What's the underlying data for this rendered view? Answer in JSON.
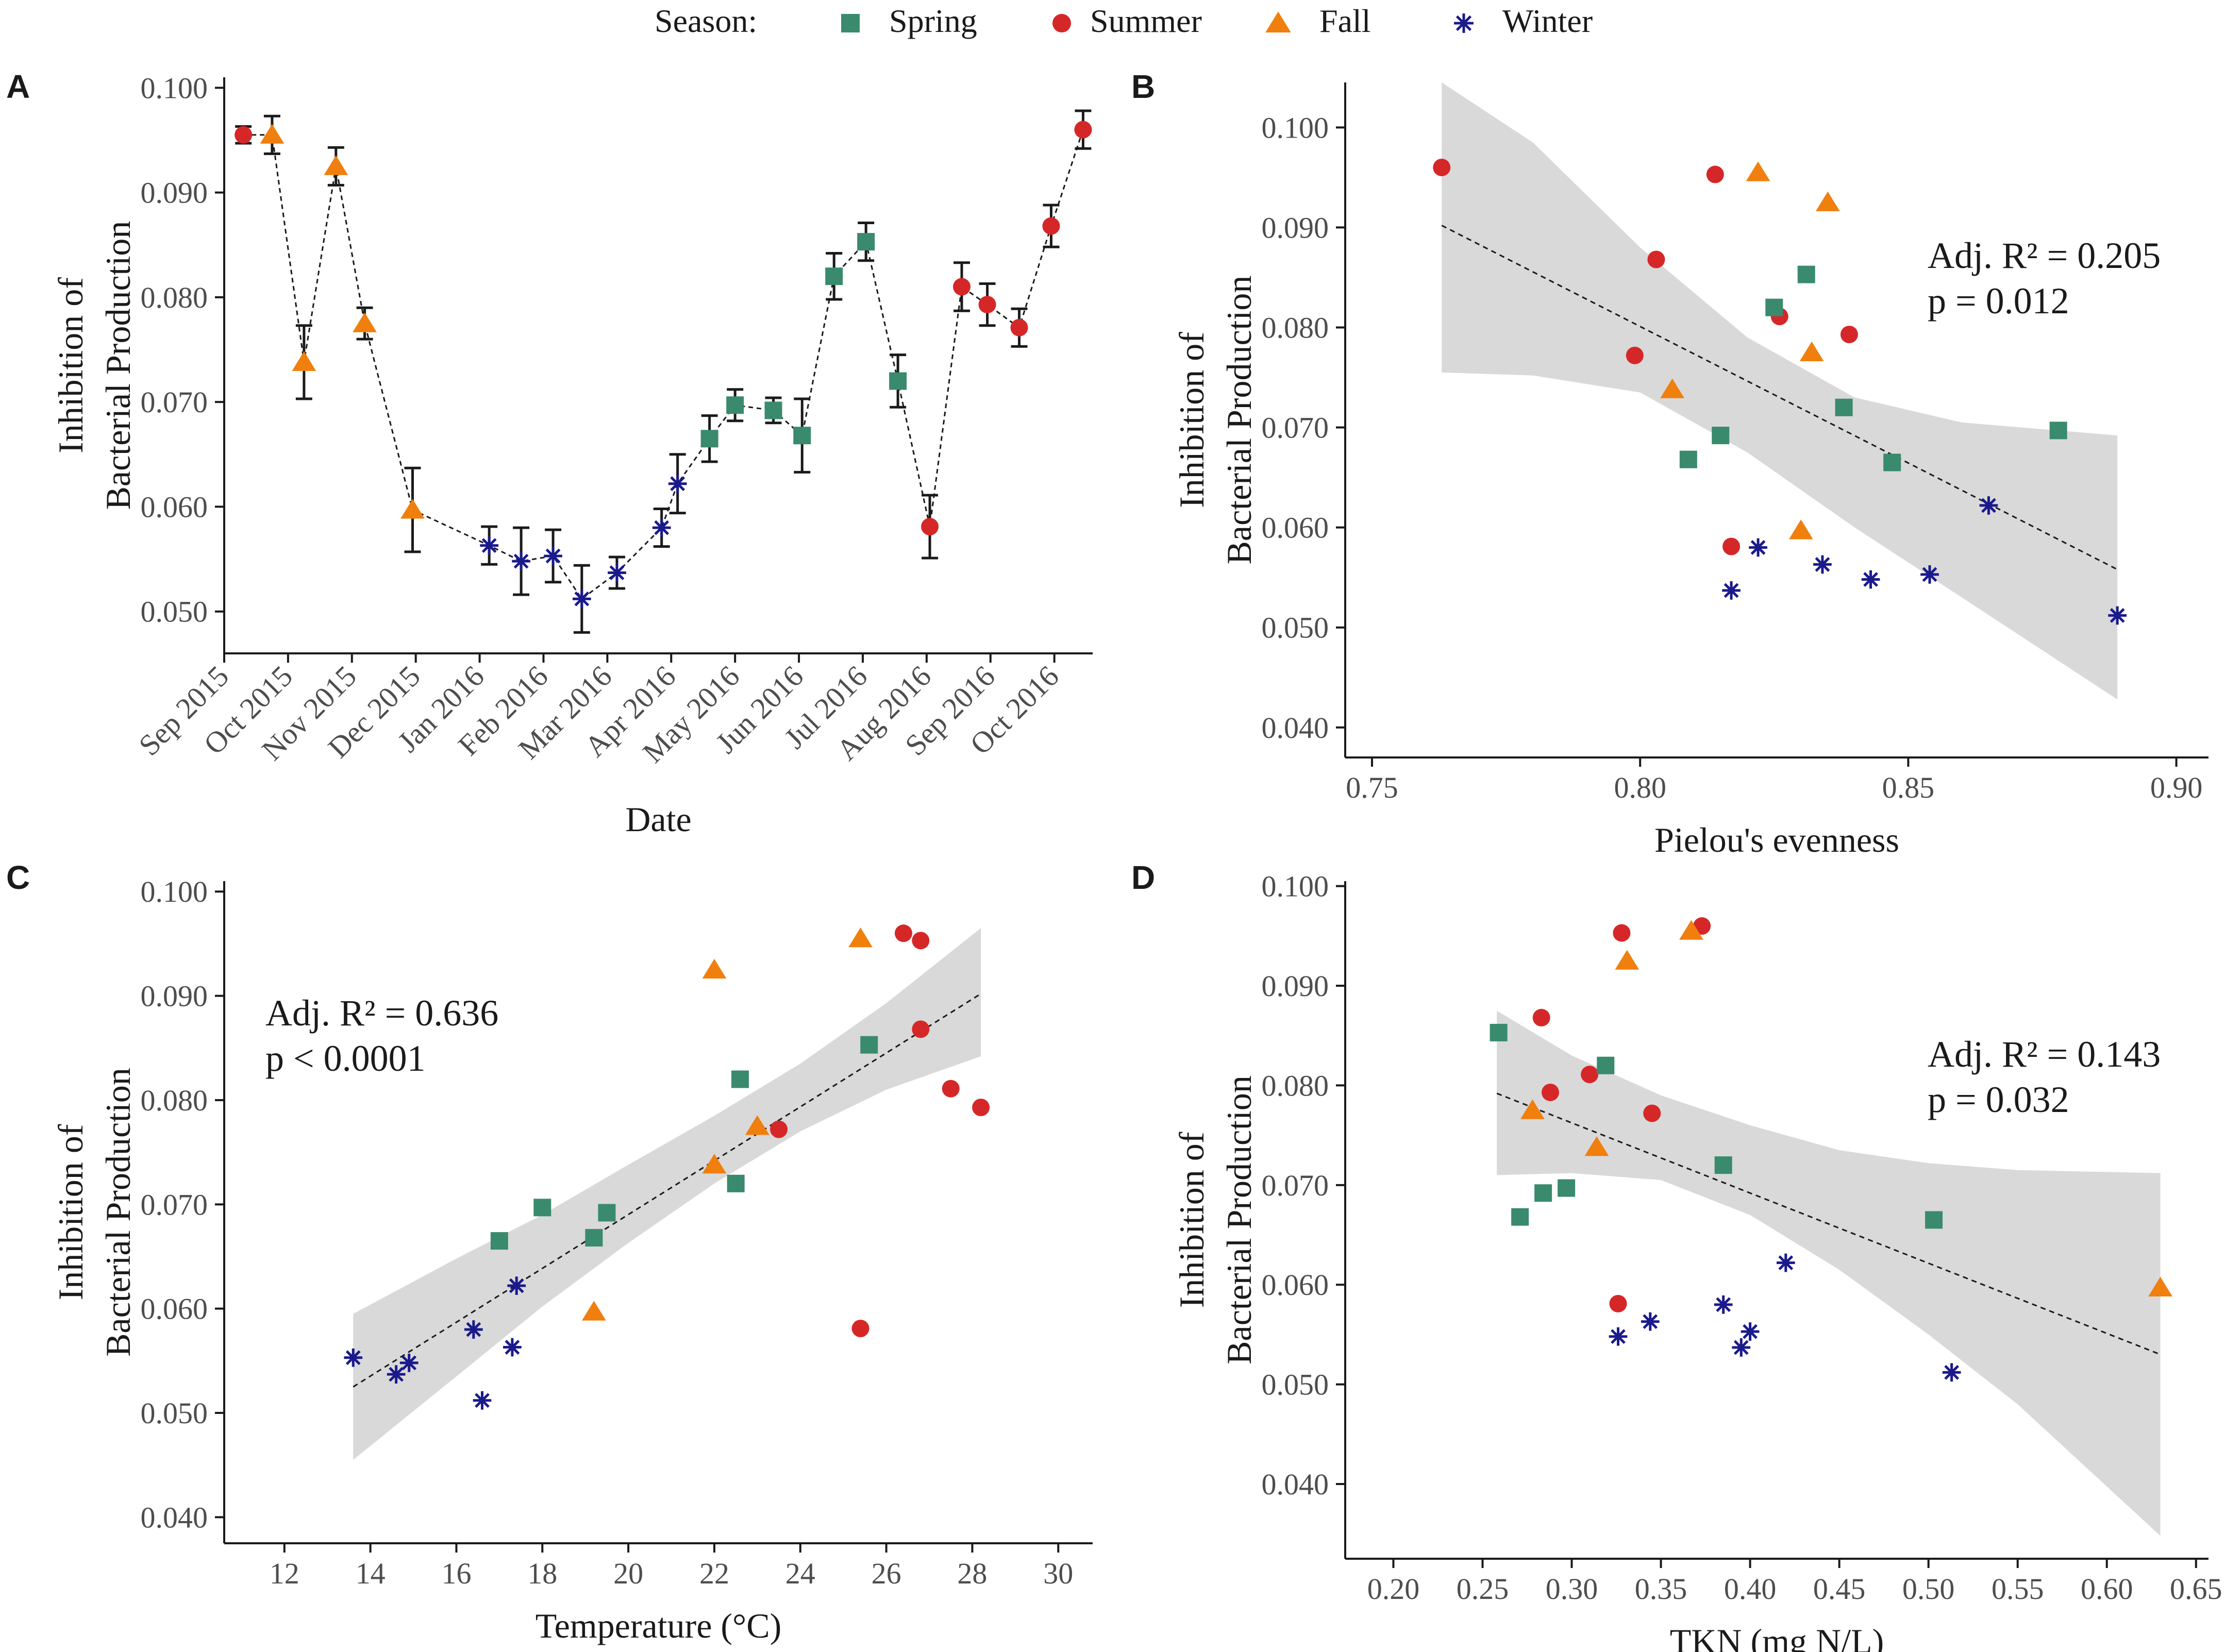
{
  "legend": {
    "title": "Season:",
    "entries": [
      {
        "label": "Spring",
        "marker": "square",
        "color": "#3a8a6e"
      },
      {
        "label": "Summer",
        "marker": "circle",
        "color": "#d62728"
      },
      {
        "label": "Fall",
        "marker": "triangle",
        "color": "#f07f0e"
      },
      {
        "label": "Winter",
        "marker": "asterisk",
        "color": "#1a1a8c"
      }
    ]
  },
  "colors": {
    "ribbon": "#d9d9d9",
    "axis": "#1a1a1a"
  },
  "chart_data": [
    {
      "id": "A",
      "type": "line",
      "panel_label": "A",
      "xlabel": "Date",
      "ylabel": [
        "Inhibition of",
        "Bacterial Production"
      ],
      "x_is_date": true,
      "xlim": [
        0,
        13.6
      ],
      "ylim": [
        0.046,
        0.101
      ],
      "xticks": [
        {
          "v": 0,
          "t": "Sep 2015"
        },
        {
          "v": 1,
          "t": "Oct 2015"
        },
        {
          "v": 2,
          "t": "Nov 2015"
        },
        {
          "v": 3,
          "t": "Dec 2015"
        },
        {
          "v": 4,
          "t": "Jan 2016"
        },
        {
          "v": 5,
          "t": "Feb 2016"
        },
        {
          "v": 6,
          "t": "Mar 2016"
        },
        {
          "v": 7,
          "t": "Apr 2016"
        },
        {
          "v": 8,
          "t": "May 2016"
        },
        {
          "v": 9,
          "t": "Jun 2016"
        },
        {
          "v": 10,
          "t": "Jul 2016"
        },
        {
          "v": 11,
          "t": "Aug 2016"
        },
        {
          "v": 12,
          "t": "Sep 2016"
        },
        {
          "v": 13,
          "t": "Oct 2016"
        }
      ],
      "yticks": [
        {
          "v": 0.05,
          "t": "0.050"
        },
        {
          "v": 0.06,
          "t": "0.060"
        },
        {
          "v": 0.07,
          "t": "0.070"
        },
        {
          "v": 0.08,
          "t": "0.080"
        },
        {
          "v": 0.09,
          "t": "0.090"
        },
        {
          "v": 0.1,
          "t": "0.100"
        }
      ],
      "points": [
        {
          "x": 0.3,
          "y": 0.0955,
          "s": "Summer",
          "err": 0.0008
        },
        {
          "x": 0.75,
          "y": 0.0955,
          "s": "Fall",
          "err": 0.0018
        },
        {
          "x": 1.25,
          "y": 0.0738,
          "s": "Fall",
          "err": 0.0035
        },
        {
          "x": 1.75,
          "y": 0.0925,
          "s": "Fall",
          "err": 0.0018
        },
        {
          "x": 2.2,
          "y": 0.0775,
          "s": "Fall",
          "err": 0.0015
        },
        {
          "x": 2.95,
          "y": 0.0597,
          "s": "Fall",
          "err": 0.004
        },
        {
          "x": 4.15,
          "y": 0.0563,
          "s": "Winter",
          "err": 0.0018
        },
        {
          "x": 4.65,
          "y": 0.0548,
          "s": "Winter",
          "err": 0.0032
        },
        {
          "x": 5.15,
          "y": 0.0553,
          "s": "Winter",
          "err": 0.0025
        },
        {
          "x": 5.6,
          "y": 0.0512,
          "s": "Winter",
          "err": 0.0032
        },
        {
          "x": 6.15,
          "y": 0.0537,
          "s": "Winter",
          "err": 0.0015
        },
        {
          "x": 6.85,
          "y": 0.058,
          "s": "Winter",
          "err": 0.0018
        },
        {
          "x": 7.1,
          "y": 0.0622,
          "s": "Winter",
          "err": 0.0028
        },
        {
          "x": 7.6,
          "y": 0.0665,
          "s": "Spring",
          "err": 0.0022
        },
        {
          "x": 8.0,
          "y": 0.0697,
          "s": "Spring",
          "err": 0.0015
        },
        {
          "x": 8.6,
          "y": 0.0692,
          "s": "Spring",
          "err": 0.0012
        },
        {
          "x": 9.05,
          "y": 0.0668,
          "s": "Spring",
          "err": 0.0035
        },
        {
          "x": 9.55,
          "y": 0.082,
          "s": "Spring",
          "err": 0.0022
        },
        {
          "x": 10.05,
          "y": 0.0853,
          "s": "Spring",
          "err": 0.0018
        },
        {
          "x": 10.55,
          "y": 0.072,
          "s": "Spring",
          "err": 0.0025
        },
        {
          "x": 11.05,
          "y": 0.0581,
          "s": "Summer",
          "err": 0.003
        },
        {
          "x": 11.55,
          "y": 0.081,
          "s": "Summer",
          "err": 0.0023
        },
        {
          "x": 11.95,
          "y": 0.0793,
          "s": "Summer",
          "err": 0.002
        },
        {
          "x": 12.45,
          "y": 0.0771,
          "s": "Summer",
          "err": 0.0018
        },
        {
          "x": 12.95,
          "y": 0.0868,
          "s": "Summer",
          "err": 0.002
        },
        {
          "x": 13.45,
          "y": 0.096,
          "s": "Summer",
          "err": 0.0018
        }
      ]
    },
    {
      "id": "B",
      "type": "scatter",
      "panel_label": "B",
      "xlabel": "Pielou's evenness",
      "ylabel": [
        "Inhibition of",
        "Bacterial Production"
      ],
      "xlim": [
        0.745,
        0.906
      ],
      "ylim": [
        0.037,
        0.1045
      ],
      "xticks": [
        {
          "v": 0.75,
          "t": "0.75"
        },
        {
          "v": 0.8,
          "t": "0.80"
        },
        {
          "v": 0.85,
          "t": "0.85"
        },
        {
          "v": 0.9,
          "t": "0.90"
        }
      ],
      "yticks": [
        {
          "v": 0.04,
          "t": "0.040"
        },
        {
          "v": 0.05,
          "t": "0.050"
        },
        {
          "v": 0.06,
          "t": "0.060"
        },
        {
          "v": 0.07,
          "t": "0.070"
        },
        {
          "v": 0.08,
          "t": "0.080"
        },
        {
          "v": 0.09,
          "t": "0.090"
        },
        {
          "v": 0.1,
          "t": "0.100"
        }
      ],
      "stats": [
        "Adj. R² = 0.205",
        "p = 0.012"
      ],
      "stats_pos": "top-right",
      "fit": {
        "x": [
          0.763,
          0.889
        ],
        "y": [
          0.0902,
          0.0558
        ]
      },
      "ribbon": {
        "x": [
          0.763,
          0.78,
          0.8,
          0.82,
          0.84,
          0.86,
          0.889
        ],
        "lo": [
          0.0755,
          0.0752,
          0.0735,
          0.0675,
          0.06,
          0.053,
          0.0428
        ],
        "hi": [
          0.1045,
          0.0985,
          0.088,
          0.079,
          0.073,
          0.0705,
          0.0692
        ]
      },
      "points": [
        {
          "x": 0.763,
          "y": 0.096,
          "s": "Summer"
        },
        {
          "x": 0.814,
          "y": 0.0953,
          "s": "Summer"
        },
        {
          "x": 0.803,
          "y": 0.0868,
          "s": "Summer"
        },
        {
          "x": 0.826,
          "y": 0.0811,
          "s": "Summer"
        },
        {
          "x": 0.839,
          "y": 0.0793,
          "s": "Summer"
        },
        {
          "x": 0.799,
          "y": 0.0772,
          "s": "Summer"
        },
        {
          "x": 0.817,
          "y": 0.0581,
          "s": "Summer"
        },
        {
          "x": 0.822,
          "y": 0.0955,
          "s": "Fall"
        },
        {
          "x": 0.835,
          "y": 0.0925,
          "s": "Fall"
        },
        {
          "x": 0.832,
          "y": 0.0775,
          "s": "Fall"
        },
        {
          "x": 0.806,
          "y": 0.0738,
          "s": "Fall"
        },
        {
          "x": 0.83,
          "y": 0.0597,
          "s": "Fall"
        },
        {
          "x": 0.831,
          "y": 0.0853,
          "s": "Spring"
        },
        {
          "x": 0.825,
          "y": 0.082,
          "s": "Spring"
        },
        {
          "x": 0.838,
          "y": 0.072,
          "s": "Spring"
        },
        {
          "x": 0.878,
          "y": 0.0697,
          "s": "Spring"
        },
        {
          "x": 0.815,
          "y": 0.0692,
          "s": "Spring"
        },
        {
          "x": 0.809,
          "y": 0.0668,
          "s": "Spring"
        },
        {
          "x": 0.847,
          "y": 0.0665,
          "s": "Spring"
        },
        {
          "x": 0.865,
          "y": 0.0622,
          "s": "Winter"
        },
        {
          "x": 0.822,
          "y": 0.058,
          "s": "Winter"
        },
        {
          "x": 0.834,
          "y": 0.0563,
          "s": "Winter"
        },
        {
          "x": 0.854,
          "y": 0.0553,
          "s": "Winter"
        },
        {
          "x": 0.843,
          "y": 0.0548,
          "s": "Winter"
        },
        {
          "x": 0.817,
          "y": 0.0537,
          "s": "Winter"
        },
        {
          "x": 0.889,
          "y": 0.0512,
          "s": "Winter"
        }
      ]
    },
    {
      "id": "C",
      "type": "scatter",
      "panel_label": "C",
      "xlabel": "Temperature (°C)",
      "ylabel": [
        "Inhibition of",
        "Bacterial Production"
      ],
      "xlim": [
        10.6,
        30.8
      ],
      "ylim": [
        0.0375,
        0.101
      ],
      "xticks": [
        {
          "v": 12,
          "t": "12"
        },
        {
          "v": 14,
          "t": "14"
        },
        {
          "v": 16,
          "t": "16"
        },
        {
          "v": 18,
          "t": "18"
        },
        {
          "v": 20,
          "t": "20"
        },
        {
          "v": 22,
          "t": "22"
        },
        {
          "v": 24,
          "t": "24"
        },
        {
          "v": 26,
          "t": "26"
        },
        {
          "v": 28,
          "t": "28"
        },
        {
          "v": 30,
          "t": "30"
        }
      ],
      "yticks": [
        {
          "v": 0.04,
          "t": "0.040"
        },
        {
          "v": 0.05,
          "t": "0.050"
        },
        {
          "v": 0.06,
          "t": "0.060"
        },
        {
          "v": 0.07,
          "t": "0.070"
        },
        {
          "v": 0.08,
          "t": "0.080"
        },
        {
          "v": 0.09,
          "t": "0.090"
        },
        {
          "v": 0.1,
          "t": "0.100"
        }
      ],
      "stats": [
        "Adj. R² = 0.636",
        "p < 0.0001"
      ],
      "stats_pos": "top-left",
      "fit": {
        "x": [
          13.6,
          28.2
        ],
        "y": [
          0.0525,
          0.0902
        ]
      },
      "ribbon": {
        "x": [
          13.6,
          16,
          18,
          20,
          22,
          24,
          26,
          28.2
        ],
        "lo": [
          0.0455,
          0.0535,
          0.0602,
          0.0663,
          0.072,
          0.077,
          0.081,
          0.0842
        ],
        "hi": [
          0.0595,
          0.0648,
          0.069,
          0.0738,
          0.0785,
          0.0835,
          0.0893,
          0.0965
        ]
      },
      "points": [
        {
          "x": 26.4,
          "y": 0.096,
          "s": "Summer"
        },
        {
          "x": 26.8,
          "y": 0.0953,
          "s": "Summer"
        },
        {
          "x": 26.8,
          "y": 0.0868,
          "s": "Summer"
        },
        {
          "x": 27.5,
          "y": 0.0811,
          "s": "Summer"
        },
        {
          "x": 28.2,
          "y": 0.0793,
          "s": "Summer"
        },
        {
          "x": 23.5,
          "y": 0.0772,
          "s": "Summer"
        },
        {
          "x": 25.4,
          "y": 0.0581,
          "s": "Summer"
        },
        {
          "x": 25.4,
          "y": 0.0955,
          "s": "Fall"
        },
        {
          "x": 22.0,
          "y": 0.0925,
          "s": "Fall"
        },
        {
          "x": 23.0,
          "y": 0.0775,
          "s": "Fall"
        },
        {
          "x": 22.0,
          "y": 0.0738,
          "s": "Fall"
        },
        {
          "x": 19.2,
          "y": 0.0597,
          "s": "Fall"
        },
        {
          "x": 25.6,
          "y": 0.0853,
          "s": "Spring"
        },
        {
          "x": 22.6,
          "y": 0.082,
          "s": "Spring"
        },
        {
          "x": 22.5,
          "y": 0.072,
          "s": "Spring"
        },
        {
          "x": 18.0,
          "y": 0.0697,
          "s": "Spring"
        },
        {
          "x": 19.5,
          "y": 0.0692,
          "s": "Spring"
        },
        {
          "x": 19.2,
          "y": 0.0668,
          "s": "Spring"
        },
        {
          "x": 17.0,
          "y": 0.0665,
          "s": "Spring"
        },
        {
          "x": 17.4,
          "y": 0.0622,
          "s": "Winter"
        },
        {
          "x": 16.4,
          "y": 0.058,
          "s": "Winter"
        },
        {
          "x": 17.3,
          "y": 0.0563,
          "s": "Winter"
        },
        {
          "x": 13.6,
          "y": 0.0553,
          "s": "Winter"
        },
        {
          "x": 14.9,
          "y": 0.0548,
          "s": "Winter"
        },
        {
          "x": 14.6,
          "y": 0.0537,
          "s": "Winter"
        },
        {
          "x": 16.6,
          "y": 0.0512,
          "s": "Winter"
        }
      ]
    },
    {
      "id": "D",
      "type": "scatter",
      "panel_label": "D",
      "xlabel": "TKN (mg N/L)",
      "ylabel": [
        "Inhibition of",
        "Bacterial Production"
      ],
      "xlim": [
        0.173,
        0.657
      ],
      "ylim": [
        0.0325,
        0.1005
      ],
      "xticks": [
        {
          "v": 0.2,
          "t": "0.20"
        },
        {
          "v": 0.25,
          "t": "0.25"
        },
        {
          "v": 0.3,
          "t": "0.30"
        },
        {
          "v": 0.35,
          "t": "0.35"
        },
        {
          "v": 0.4,
          "t": "0.40"
        },
        {
          "v": 0.45,
          "t": "0.45"
        },
        {
          "v": 0.5,
          "t": "0.50"
        },
        {
          "v": 0.55,
          "t": "0.55"
        },
        {
          "v": 0.6,
          "t": "0.60"
        },
        {
          "v": 0.65,
          "t": "0.65"
        }
      ],
      "yticks": [
        {
          "v": 0.04,
          "t": "0.040"
        },
        {
          "v": 0.05,
          "t": "0.050"
        },
        {
          "v": 0.06,
          "t": "0.060"
        },
        {
          "v": 0.07,
          "t": "0.070"
        },
        {
          "v": 0.08,
          "t": "0.080"
        },
        {
          "v": 0.09,
          "t": "0.090"
        },
        {
          "v": 0.1,
          "t": "0.100"
        }
      ],
      "stats": [
        "Adj. R² = 0.143",
        "p = 0.032"
      ],
      "stats_pos": "top-right",
      "fit": {
        "x": [
          0.258,
          0.63
        ],
        "y": [
          0.0792,
          0.053
        ]
      },
      "ribbon": {
        "x": [
          0.258,
          0.3,
          0.35,
          0.4,
          0.45,
          0.5,
          0.55,
          0.63
        ],
        "lo": [
          0.071,
          0.0712,
          0.0705,
          0.067,
          0.0615,
          0.055,
          0.048,
          0.0348
        ],
        "hi": [
          0.0875,
          0.083,
          0.079,
          0.076,
          0.0735,
          0.0722,
          0.0715,
          0.0712
        ]
      },
      "points": [
        {
          "x": 0.373,
          "y": 0.096,
          "s": "Summer"
        },
        {
          "x": 0.328,
          "y": 0.0953,
          "s": "Summer"
        },
        {
          "x": 0.283,
          "y": 0.0868,
          "s": "Summer"
        },
        {
          "x": 0.31,
          "y": 0.0811,
          "s": "Summer"
        },
        {
          "x": 0.288,
          "y": 0.0793,
          "s": "Summer"
        },
        {
          "x": 0.345,
          "y": 0.0772,
          "s": "Summer"
        },
        {
          "x": 0.326,
          "y": 0.0581,
          "s": "Summer"
        },
        {
          "x": 0.367,
          "y": 0.0955,
          "s": "Fall"
        },
        {
          "x": 0.331,
          "y": 0.0925,
          "s": "Fall"
        },
        {
          "x": 0.278,
          "y": 0.0775,
          "s": "Fall"
        },
        {
          "x": 0.314,
          "y": 0.0738,
          "s": "Fall"
        },
        {
          "x": 0.63,
          "y": 0.0597,
          "s": "Fall"
        },
        {
          "x": 0.259,
          "y": 0.0853,
          "s": "Spring"
        },
        {
          "x": 0.319,
          "y": 0.082,
          "s": "Spring"
        },
        {
          "x": 0.385,
          "y": 0.072,
          "s": "Spring"
        },
        {
          "x": 0.297,
          "y": 0.0697,
          "s": "Spring"
        },
        {
          "x": 0.284,
          "y": 0.0692,
          "s": "Spring"
        },
        {
          "x": 0.271,
          "y": 0.0668,
          "s": "Spring"
        },
        {
          "x": 0.503,
          "y": 0.0665,
          "s": "Spring"
        },
        {
          "x": 0.42,
          "y": 0.0622,
          "s": "Winter"
        },
        {
          "x": 0.385,
          "y": 0.058,
          "s": "Winter"
        },
        {
          "x": 0.344,
          "y": 0.0563,
          "s": "Winter"
        },
        {
          "x": 0.4,
          "y": 0.0553,
          "s": "Winter"
        },
        {
          "x": 0.326,
          "y": 0.0548,
          "s": "Winter"
        },
        {
          "x": 0.395,
          "y": 0.0537,
          "s": "Winter"
        },
        {
          "x": 0.513,
          "y": 0.0512,
          "s": "Winter"
        }
      ]
    }
  ]
}
